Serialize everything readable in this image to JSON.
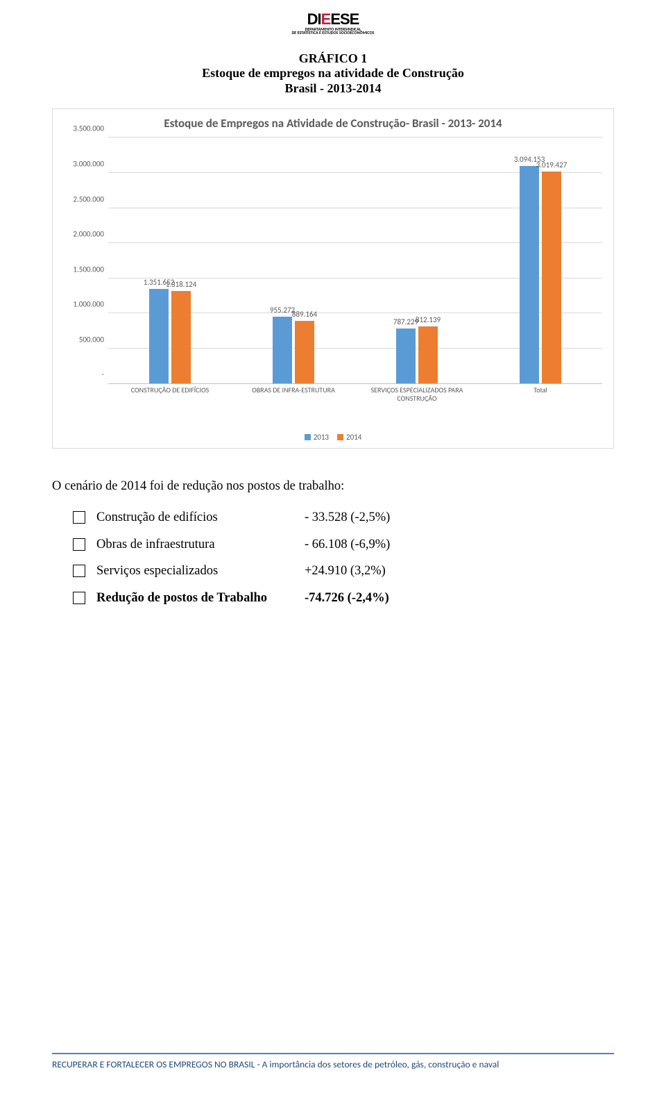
{
  "logo": {
    "main_left": "DI",
    "main_red": "E",
    "main_right": "ESE",
    "sub1": "DEPARTAMENTO INTERSINDICAL",
    "sub2": "DE ESTATÍSTICA E ESTUDOS SOCIOECONÔMICOS"
  },
  "title": {
    "line1": "GRÁFICO 1",
    "line2": "Estoque de empregos na atividade de Construção",
    "line3": "Brasil - 2013-2014"
  },
  "chart": {
    "type": "bar",
    "title": "Estoque de Empregos na Atividade de Construção- Brasil  - 2013- 2014",
    "y_max": 3500000,
    "y_step": 500000,
    "y_ticks": [
      "-",
      "500.000",
      "1.000.000",
      "1.500.000",
      "2.000.000",
      "2.500.000",
      "3.000.000",
      "3.500.000"
    ],
    "series_names": [
      "2013",
      "2014"
    ],
    "series_colors": [
      "#5b9bd5",
      "#ed7d31"
    ],
    "grid_color": "#d9d9d9",
    "axis_text_color": "#595959",
    "background_color": "#ffffff",
    "categories": [
      {
        "label": "CONSTRUÇÃO DE EDIFÍCIOS",
        "values": [
          1351652,
          1318124
        ],
        "value_labels": [
          "1.351.652",
          "1.318.124"
        ]
      },
      {
        "label": "OBRAS DE INFRA-ESTRUTURA",
        "values": [
          955272,
          889164
        ],
        "value_labels": [
          "955.272",
          "889.164"
        ]
      },
      {
        "label": "SERVIÇOS ESPECIALIZADOS PARA CONSTRUÇÃO",
        "values": [
          787229,
          812139
        ],
        "value_labels": [
          "787.229",
          "812.139"
        ]
      },
      {
        "label": "Total",
        "values": [
          3094153,
          3019427
        ],
        "value_labels": [
          "3.094.153",
          "3.019.427"
        ]
      }
    ]
  },
  "scenario": {
    "lead": "O cenário de 2014 foi de redução nos postos de trabalho:",
    "items": [
      {
        "label": "Construção de edifícios",
        "value": "- 33.528 (-2,5%)",
        "bold": false
      },
      {
        "label": "Obras de infraestrutura",
        "value": "- 66.108  (-6,9%)",
        "bold": false
      },
      {
        "label": "Serviços especializados",
        "value": "+24.910  (3,2%)",
        "bold": false
      },
      {
        "label": "Redução de postos de Trabalho",
        "value": "-74.726 (-2,4%)",
        "bold": true
      }
    ]
  },
  "footer": {
    "text": "RECUPERAR E FORTALECER OS EMPREGOS NO BRASIL - A importância dos setores de petróleo, gás, construção e naval",
    "line_color": "#4f81bd",
    "text_color": "#1f497d"
  }
}
